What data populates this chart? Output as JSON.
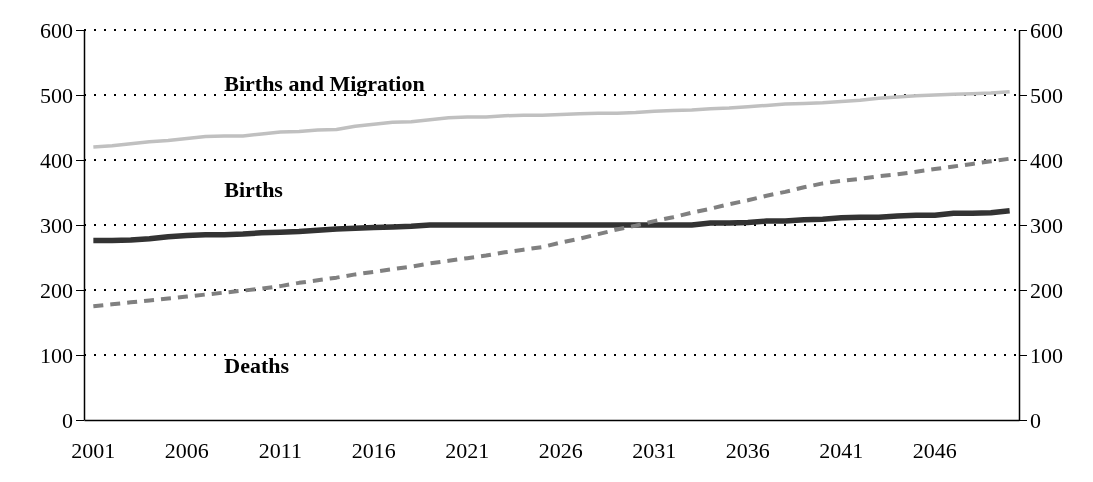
{
  "chart_data": {
    "type": "line",
    "categories": [
      "2001",
      null,
      null,
      null,
      null,
      "2006",
      null,
      null,
      null,
      null,
      "2011",
      null,
      null,
      null,
      null,
      "2016",
      null,
      null,
      null,
      null,
      "2021",
      null,
      null,
      null,
      null,
      "2026",
      null,
      null,
      null,
      null,
      "2031",
      null,
      null,
      null,
      null,
      "2036",
      null,
      null,
      null,
      null,
      "2041",
      null,
      null,
      null,
      null,
      "2046",
      null,
      null,
      null,
      null
    ],
    "series": [
      {
        "name": "Births and Migration",
        "color": "#c0c0c0",
        "line_style": "solid",
        "values": [
          420,
          422,
          425,
          428,
          430,
          433,
          436,
          437,
          437,
          440,
          443,
          444,
          446,
          447,
          452,
          455,
          458,
          459,
          462,
          465,
          466,
          466,
          468,
          469,
          469,
          470,
          471,
          472,
          472,
          473,
          475,
          476,
          477,
          479,
          480,
          482,
          484,
          486,
          487,
          488,
          490,
          492,
          495,
          497,
          499,
          500,
          501,
          502,
          503,
          505
        ]
      },
      {
        "name": "Births",
        "color": "#333333",
        "line_style": "solid",
        "values": [
          276,
          276,
          277,
          279,
          282,
          284,
          285,
          285,
          286,
          288,
          289,
          290,
          292,
          294,
          295,
          296,
          297,
          298,
          300,
          300,
          300,
          300,
          300,
          300,
          300,
          300,
          300,
          300,
          300,
          300,
          300,
          300,
          300,
          303,
          303,
          304,
          306,
          306,
          308,
          309,
          311,
          312,
          312,
          314,
          315,
          315,
          318,
          318,
          319,
          322
        ]
      },
      {
        "name": "Deaths",
        "color": "#808080",
        "line_style": "dashed",
        "values": [
          175,
          178,
          181,
          184,
          187,
          190,
          193,
          196,
          199,
          202,
          206,
          211,
          215,
          219,
          224,
          228,
          232,
          236,
          241,
          245,
          249,
          253,
          258,
          262,
          266,
          273,
          279,
          286,
          293,
          299,
          306,
          312,
          319,
          325,
          332,
          338,
          345,
          351,
          358,
          364,
          368,
          371,
          375,
          378,
          382,
          386,
          390,
          394,
          398,
          402
        ]
      }
    ],
    "ylim": [
      0,
      600
    ],
    "yticks": [
      0,
      100,
      200,
      300,
      400,
      500,
      600
    ],
    "y2lim": [
      0,
      600
    ],
    "y2ticks": [
      0,
      100,
      200,
      300,
      400,
      500,
      600
    ],
    "grid": "y",
    "legend": false,
    "marker": "none"
  }
}
